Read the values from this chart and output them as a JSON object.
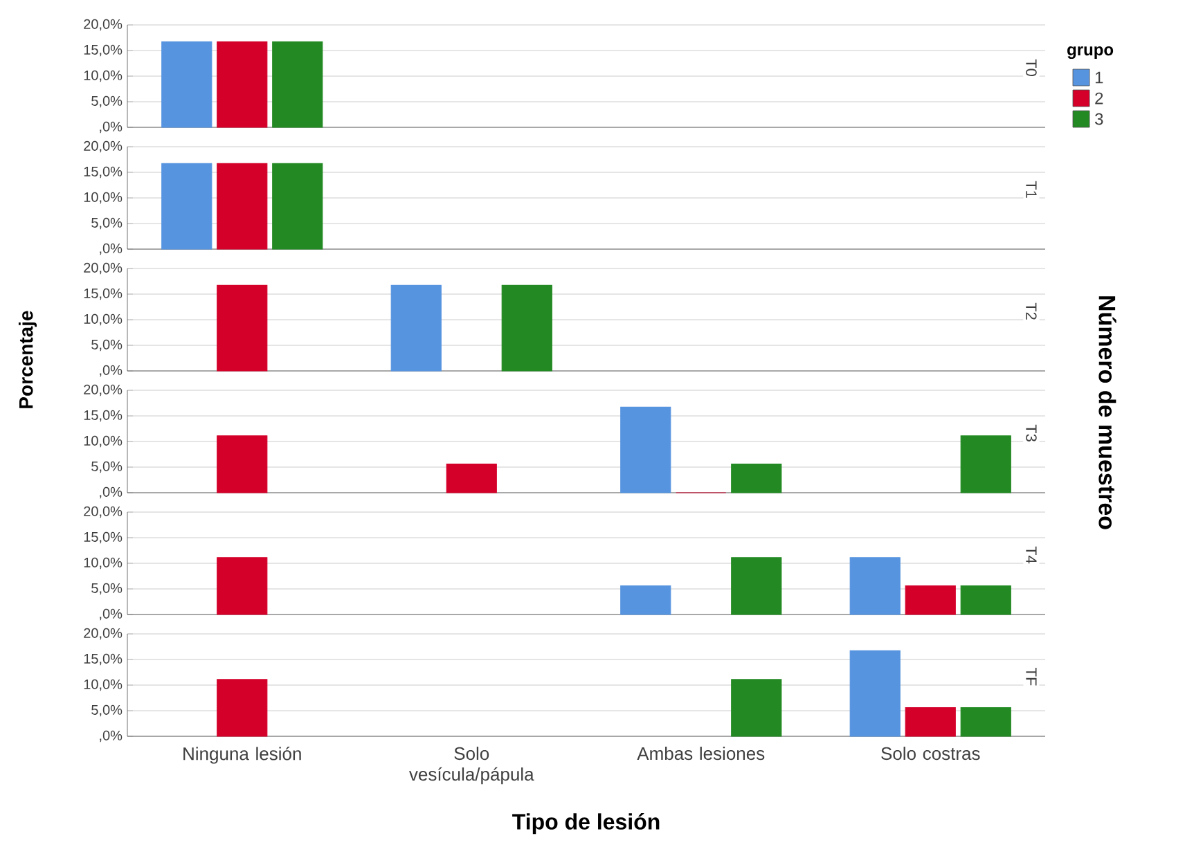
{
  "chart_data": [
    {
      "type": "bar",
      "title": "T0",
      "legend_title": "grupo",
      "legend": "right",
      "grid": "y",
      "tick_labels": "y",
      "categories": [
        null,
        null,
        null,
        null
      ],
      "ylim": [
        0,
        20
      ],
      "yticks": [
        {
          "value": 0,
          "label": ",0%"
        },
        {
          "value": 5,
          "label": "5,0%"
        },
        {
          "value": 10,
          "label": "10,0%"
        },
        {
          "value": 15,
          "label": "15,0%"
        },
        {
          "value": 20,
          "label": "20,0%"
        }
      ],
      "series": [
        {
          "name": "1",
          "color": "#5794e0",
          "values": [
            16.7,
            null,
            null,
            null
          ]
        },
        {
          "name": "2",
          "color": "#d4002a",
          "values": [
            16.7,
            null,
            null,
            null
          ]
        },
        {
          "name": "3",
          "color": "#238a23",
          "values": [
            16.7,
            null,
            null,
            null
          ]
        }
      ]
    },
    {
      "type": "bar",
      "title": "T1",
      "grid": "y",
      "tick_labels": "y",
      "categories": [
        null,
        null,
        null,
        null
      ],
      "ylim": [
        0,
        20
      ],
      "yticks": [
        {
          "value": 0,
          "label": ",0%"
        },
        {
          "value": 5,
          "label": "5,0%"
        },
        {
          "value": 10,
          "label": "10,0%"
        },
        {
          "value": 15,
          "label": "15,0%"
        },
        {
          "value": 20,
          "label": "20,0%"
        }
      ],
      "series": [
        {
          "color": "#5794e0",
          "values": [
            16.7,
            null,
            null,
            null
          ]
        },
        {
          "color": "#d4002a",
          "values": [
            16.7,
            null,
            null,
            null
          ]
        },
        {
          "color": "#238a23",
          "values": [
            16.7,
            null,
            null,
            null
          ]
        }
      ]
    },
    {
      "type": "bar",
      "title": "T2",
      "ylabel": "Porcentaje",
      "grid": "y",
      "tick_labels": "y",
      "categories": [
        null,
        null,
        null,
        null
      ],
      "ylim": [
        0,
        20
      ],
      "yticks": [
        {
          "value": 0,
          "label": ",0%"
        },
        {
          "value": 5,
          "label": "5,0%"
        },
        {
          "value": 10,
          "label": "10,0%"
        },
        {
          "value": 15,
          "label": "15,0%"
        },
        {
          "value": 20,
          "label": "20,0%"
        }
      ],
      "series": [
        {
          "color": "#5794e0",
          "values": [
            null,
            16.7,
            null,
            null
          ]
        },
        {
          "color": "#d4002a",
          "values": [
            16.7,
            null,
            null,
            null
          ]
        },
        {
          "color": "#238a23",
          "values": [
            null,
            16.7,
            null,
            null
          ]
        }
      ]
    },
    {
      "type": "bar",
      "title": "T3",
      "y2label": "Número de muestreo",
      "grid": "y",
      "tick_labels": "y",
      "categories": [
        null,
        null,
        null,
        null
      ],
      "ylim": [
        0,
        20
      ],
      "yticks": [
        {
          "value": 0,
          "label": ",0%"
        },
        {
          "value": 5,
          "label": "5,0%"
        },
        {
          "value": 10,
          "label": "10,0%"
        },
        {
          "value": 15,
          "label": "15,0%"
        },
        {
          "value": 20,
          "label": "20,0%"
        }
      ],
      "series": [
        {
          "color": "#5794e0",
          "values": [
            null,
            null,
            16.7,
            null
          ]
        },
        {
          "color": "#d4002a",
          "values": [
            11.1,
            5.6,
            0,
            null
          ]
        },
        {
          "color": "#238a23",
          "values": [
            null,
            null,
            5.6,
            11.1
          ]
        }
      ]
    },
    {
      "type": "bar",
      "title": "T4",
      "grid": "y",
      "tick_labels": "y",
      "categories": [
        null,
        null,
        null,
        null
      ],
      "ylim": [
        0,
        20
      ],
      "yticks": [
        {
          "value": 0,
          "label": ",0%"
        },
        {
          "value": 5,
          "label": "5,0%"
        },
        {
          "value": 10,
          "label": "10,0%"
        },
        {
          "value": 15,
          "label": "15,0%"
        },
        {
          "value": 20,
          "label": "20,0%"
        }
      ],
      "series": [
        {
          "color": "#5794e0",
          "values": [
            null,
            null,
            5.6,
            11.1
          ]
        },
        {
          "color": "#d4002a",
          "values": [
            11.1,
            null,
            null,
            5.6
          ]
        },
        {
          "color": "#238a23",
          "values": [
            null,
            null,
            11.1,
            5.6
          ]
        }
      ]
    },
    {
      "type": "bar",
      "title": "TF",
      "xlabel": "Tipo de lesión",
      "grid": "y",
      "categories": [
        "Ninguna lesión",
        "Solo vesícula/pápula",
        "Ambas lesiones",
        "Solo costras"
      ],
      "ylim": [
        0,
        20
      ],
      "yticks": [
        {
          "value": 0,
          "label": ",0%"
        },
        {
          "value": 5,
          "label": "5,0%"
        },
        {
          "value": 10,
          "label": "10,0%"
        },
        {
          "value": 15,
          "label": "15,0%"
        },
        {
          "value": 20,
          "label": "20,0%"
        }
      ],
      "series": [
        {
          "color": "#5794e0",
          "values": [
            null,
            null,
            null,
            16.7
          ]
        },
        {
          "color": "#d4002a",
          "values": [
            11.1,
            null,
            null,
            5.6
          ]
        },
        {
          "color": "#238a23",
          "values": [
            null,
            null,
            11.1,
            5.6
          ]
        }
      ]
    }
  ]
}
